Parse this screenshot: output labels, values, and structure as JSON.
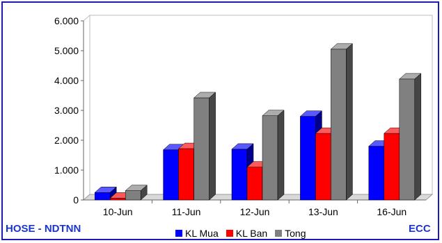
{
  "chart_data": {
    "type": "bar",
    "categories": [
      "10-Jun",
      "11-Jun",
      "12-Jun",
      "13-Jun",
      "16-Jun"
    ],
    "series": [
      {
        "name": "KL Mua",
        "color": "#0000ff",
        "values": [
          250,
          1680,
          1700,
          2800,
          1800
        ]
      },
      {
        "name": "KL Ban",
        "color": "#ff0000",
        "values": [
          60,
          1720,
          1100,
          2230,
          2230
        ]
      },
      {
        "name": "Tong",
        "color": "#808080",
        "values": [
          310,
          3420,
          2820,
          5050,
          4050
        ]
      }
    ],
    "y_ticks": [
      "0",
      "1.000",
      "2.000",
      "3.000",
      "4.000",
      "5.000",
      "6.000"
    ],
    "ylim": [
      0,
      6000
    ],
    "grid": false,
    "legend_position": "bottom"
  },
  "footer": {
    "left_label": "HOSE - NDTNN",
    "right_label": "ECC"
  }
}
